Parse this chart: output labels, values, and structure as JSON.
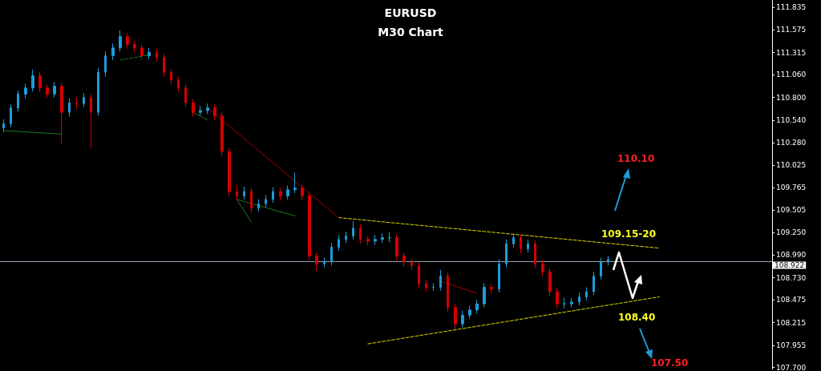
{
  "chart_data": {
    "type": "candlestick",
    "title": "EURUSD",
    "subtitle": "M30 Chart",
    "categories": [
      null,
      null,
      null,
      null,
      null,
      null,
      null,
      null,
      null,
      null,
      null,
      null,
      null,
      null,
      null,
      null,
      null,
      null,
      null,
      null,
      null,
      null,
      null,
      null,
      null,
      null,
      null,
      null,
      null,
      null,
      null,
      null,
      null,
      null,
      null,
      null,
      null,
      null,
      null,
      null,
      null,
      null,
      null,
      null,
      null,
      null,
      null,
      null,
      null,
      null,
      null,
      null,
      null,
      null,
      null,
      null,
      null,
      null,
      null,
      null,
      null,
      null,
      null,
      null,
      null,
      null,
      null,
      null,
      null,
      null,
      null,
      null,
      null,
      null,
      null,
      null,
      null,
      null,
      null,
      null,
      null,
      null,
      null,
      null,
      null,
      null,
      null,
      null,
      null,
      null,
      null,
      null,
      null,
      null,
      null,
      null,
      null,
      null,
      null,
      null,
      null,
      null,
      null,
      null,
      null,
      null
    ],
    "ylim": [
      107.68,
      111.92
    ],
    "yticks": [
      {
        "value": 107.7,
        "label": "107.700"
      },
      {
        "value": 107.955,
        "label": "107.955"
      },
      {
        "value": 108.215,
        "label": "108.215"
      },
      {
        "value": 108.475,
        "label": "108.475"
      },
      {
        "value": 108.73,
        "label": "108.730"
      },
      {
        "value": 108.99,
        "label": "108.990"
      },
      {
        "value": 109.25,
        "label": "109.250"
      },
      {
        "value": 109.505,
        "label": "109.505"
      },
      {
        "value": 109.765,
        "label": "109.765"
      },
      {
        "value": 110.025,
        "label": "110.025"
      },
      {
        "value": 110.28,
        "label": "110.280"
      },
      {
        "value": 110.54,
        "label": "110.540"
      },
      {
        "value": 110.8,
        "label": "110.800"
      },
      {
        "value": 111.06,
        "label": "111.060"
      },
      {
        "value": 111.315,
        "label": "111.315"
      },
      {
        "value": 111.575,
        "label": "111.575"
      },
      {
        "value": 111.835,
        "label": "111.835"
      }
    ],
    "grid": false,
    "tick_labels": "y",
    "marker": "none",
    "ref_lines": [
      {
        "axis": "y",
        "value": 108.922,
        "label": "108.922",
        "color": "#8ea0b8"
      }
    ],
    "annotations": [
      "110.10",
      "109.15-20",
      "108.40",
      "107.50"
    ],
    "series": [
      {
        "ohlc": [
          [
            110.45,
            110.55,
            110.4,
            110.5
          ],
          [
            110.5,
            110.72,
            110.46,
            110.68
          ],
          [
            110.68,
            110.88,
            110.64,
            110.84
          ],
          [
            110.84,
            110.96,
            110.79,
            110.91
          ],
          [
            110.91,
            111.12,
            110.87,
            111.05
          ],
          [
            111.05,
            111.09,
            110.86,
            110.91
          ],
          [
            110.91,
            110.95,
            110.8,
            110.84
          ],
          [
            110.84,
            110.98,
            110.8,
            110.93
          ],
          [
            110.93,
            110.97,
            110.27,
            110.63
          ],
          [
            110.63,
            110.79,
            110.58,
            110.74
          ],
          [
            110.74,
            110.8,
            110.67,
            110.73
          ],
          [
            110.73,
            110.85,
            110.69,
            110.8
          ],
          [
            110.8,
            110.84,
            110.22,
            110.63
          ],
          [
            110.63,
            111.14,
            110.59,
            111.09
          ],
          [
            111.09,
            111.33,
            111.04,
            111.28
          ],
          [
            111.28,
            111.42,
            111.23,
            111.37
          ],
          [
            111.37,
            111.57,
            111.33,
            111.5
          ],
          [
            111.5,
            111.54,
            111.36,
            111.41
          ],
          [
            111.41,
            111.45,
            111.32,
            111.37
          ],
          [
            111.37,
            111.41,
            111.23,
            111.28
          ],
          [
            111.28,
            111.37,
            111.24,
            111.32
          ],
          [
            111.32,
            111.36,
            111.21,
            111.26
          ],
          [
            111.26,
            111.3,
            111.04,
            111.09
          ],
          [
            111.09,
            111.13,
            110.95,
            111.0
          ],
          [
            111.0,
            111.04,
            110.86,
            110.91
          ],
          [
            110.91,
            110.95,
            110.69,
            110.74
          ],
          [
            110.74,
            110.78,
            110.58,
            110.63
          ],
          [
            110.63,
            110.7,
            110.59,
            110.65
          ],
          [
            110.65,
            110.73,
            110.61,
            110.68
          ],
          [
            110.68,
            110.72,
            110.54,
            110.59
          ],
          [
            110.59,
            110.63,
            110.13,
            110.18
          ],
          [
            110.18,
            110.22,
            109.67,
            109.72
          ],
          [
            109.72,
            109.8,
            109.62,
            109.67
          ],
          [
            109.67,
            109.78,
            109.63,
            109.72
          ],
          [
            109.72,
            109.76,
            109.48,
            109.53
          ],
          [
            109.53,
            109.63,
            109.49,
            109.58
          ],
          [
            109.58,
            109.68,
            109.54,
            109.63
          ],
          [
            109.63,
            109.77,
            109.59,
            109.72
          ],
          [
            109.72,
            109.76,
            109.62,
            109.67
          ],
          [
            109.67,
            109.79,
            109.63,
            109.74
          ],
          [
            109.74,
            109.94,
            109.7,
            109.76
          ],
          [
            109.76,
            109.8,
            109.62,
            109.67
          ],
          [
            109.67,
            109.71,
            108.93,
            108.98
          ],
          [
            108.98,
            109.02,
            108.81,
            108.89
          ],
          [
            108.89,
            108.96,
            108.85,
            108.91
          ],
          [
            108.91,
            109.13,
            108.87,
            109.08
          ],
          [
            109.08,
            109.22,
            109.04,
            109.17
          ],
          [
            109.17,
            109.26,
            109.13,
            109.21
          ],
          [
            109.21,
            109.38,
            109.17,
            109.3
          ],
          [
            109.3,
            109.34,
            109.12,
            109.17
          ],
          [
            109.17,
            109.21,
            109.1,
            109.15
          ],
          [
            109.15,
            109.22,
            109.11,
            109.17
          ],
          [
            109.17,
            109.24,
            109.13,
            109.19
          ],
          [
            109.19,
            109.25,
            109.14,
            109.19
          ],
          [
            109.19,
            109.23,
            108.93,
            108.98
          ],
          [
            108.98,
            109.02,
            108.86,
            108.91
          ],
          [
            108.91,
            108.95,
            108.82,
            108.87
          ],
          [
            108.87,
            108.91,
            108.61,
            108.66
          ],
          [
            108.66,
            108.7,
            108.57,
            108.62
          ],
          [
            108.62,
            108.67,
            108.58,
            108.62
          ],
          [
            108.62,
            108.82,
            108.58,
            108.75
          ],
          [
            108.75,
            108.79,
            108.34,
            108.39
          ],
          [
            108.39,
            108.43,
            108.14,
            108.2
          ],
          [
            108.2,
            108.35,
            108.16,
            108.3
          ],
          [
            108.3,
            108.41,
            108.26,
            108.36
          ],
          [
            108.36,
            108.48,
            108.32,
            108.43
          ],
          [
            108.43,
            108.67,
            108.39,
            108.62
          ],
          [
            108.62,
            108.66,
            108.55,
            108.6
          ],
          [
            108.6,
            108.94,
            108.56,
            108.89
          ],
          [
            108.89,
            109.17,
            108.85,
            109.12
          ],
          [
            109.12,
            109.24,
            109.08,
            109.19
          ],
          [
            109.19,
            109.23,
            109.01,
            109.06
          ],
          [
            109.06,
            109.17,
            109.02,
            109.12
          ],
          [
            109.12,
            109.16,
            108.84,
            108.89
          ],
          [
            108.89,
            108.93,
            108.75,
            108.8
          ],
          [
            108.8,
            108.84,
            108.52,
            108.57
          ],
          [
            108.57,
            108.61,
            108.38,
            108.43
          ],
          [
            108.43,
            108.5,
            108.38,
            108.43
          ],
          [
            108.43,
            108.5,
            108.39,
            108.45
          ],
          [
            108.45,
            108.56,
            108.41,
            108.51
          ],
          [
            108.51,
            108.62,
            108.47,
            108.57
          ],
          [
            108.57,
            108.8,
            108.53,
            108.75
          ],
          [
            108.75,
            108.96,
            108.71,
            108.91
          ],
          [
            108.91,
            108.98,
            108.87,
            108.94
          ],
          null,
          null,
          null,
          null,
          null,
          null,
          null,
          null,
          null,
          null,
          null,
          null,
          null,
          null,
          null,
          null,
          null,
          null,
          null,
          null,
          null,
          null
        ],
        "colors": [
          "#1e9bd7",
          "#1e9bd7",
          "#1e9bd7",
          "#1e9bd7",
          "#1e9bd7",
          "#d40000",
          "#d40000",
          "#1e9bd7",
          "#d40000",
          "#1e9bd7",
          "#d40000",
          "#1e9bd7",
          "#d40000",
          "#1e9bd7",
          "#1e9bd7",
          "#1e9bd7",
          "#1e9bd7",
          "#d40000",
          "#d40000",
          "#d40000",
          "#1e9bd7",
          "#d40000",
          "#d40000",
          "#d40000",
          "#d40000",
          "#d40000",
          "#d40000",
          "#1e9bd7",
          "#1e9bd7",
          "#d40000",
          "#d40000",
          "#d40000",
          "#d40000",
          "#1e9bd7",
          "#d40000",
          "#1e9bd7",
          "#1e9bd7",
          "#1e9bd7",
          "#d40000",
          "#1e9bd7",
          "#1e9bd7",
          "#d40000",
          "#d40000",
          "#d40000",
          "#1e9bd7",
          "#1e9bd7",
          "#1e9bd7",
          "#1e9bd7",
          "#1e9bd7",
          "#d40000",
          "#d40000",
          "#1e9bd7",
          "#1e9bd7",
          "#1e9bd7",
          "#d40000",
          "#d40000",
          "#d40000",
          "#d40000",
          "#d40000",
          "#1e9bd7",
          "#1e9bd7",
          "#d40000",
          "#d40000",
          "#1e9bd7",
          "#1e9bd7",
          "#1e9bd7",
          "#1e9bd7",
          "#d40000",
          "#1e9bd7",
          "#1e9bd7",
          "#1e9bd7",
          "#d40000",
          "#1e9bd7",
          "#d40000",
          "#d40000",
          "#d40000",
          "#d40000",
          "#1e9bd7",
          "#1e9bd7",
          "#1e9bd7",
          "#1e9bd7",
          "#1e9bd7",
          "#1e9bd7",
          "#1e9bd7",
          null,
          null,
          null,
          null,
          null,
          null,
          null,
          null,
          null,
          null,
          null,
          null,
          null,
          null,
          null,
          null,
          null,
          null,
          null,
          null,
          null,
          null
        ]
      },
      {
        "type": "line",
        "color": "#d8d800",
        "line_style": "dashed",
        "values": [
          null,
          null,
          null,
          null,
          null,
          null,
          null,
          null,
          null,
          null,
          null,
          null,
          null,
          null,
          null,
          null,
          null,
          null,
          null,
          null,
          null,
          null,
          null,
          null,
          null,
          null,
          null,
          null,
          null,
          null,
          null,
          null,
          null,
          null,
          null,
          null,
          null,
          null,
          null,
          null,
          null,
          null,
          null,
          null,
          null,
          null,
          109.42,
          null,
          null,
          null,
          null,
          null,
          null,
          null,
          null,
          null,
          null,
          null,
          null,
          null,
          null,
          null,
          null,
          null,
          null,
          null,
          null,
          null,
          null,
          null,
          null,
          null,
          null,
          null,
          null,
          null,
          null,
          null,
          null,
          null,
          null,
          null,
          null,
          null,
          null,
          null,
          null,
          null,
          null,
          null,
          109.07,
          null,
          null,
          null,
          null,
          null,
          null,
          null,
          null,
          null,
          null,
          null,
          null,
          null,
          null,
          null
        ]
      },
      {
        "type": "line",
        "color": "#d8d800",
        "line_style": "dashed",
        "values": [
          null,
          null,
          null,
          null,
          null,
          null,
          null,
          null,
          null,
          null,
          null,
          null,
          null,
          null,
          null,
          null,
          null,
          null,
          null,
          null,
          null,
          null,
          null,
          null,
          null,
          null,
          null,
          null,
          null,
          null,
          null,
          null,
          null,
          null,
          null,
          null,
          null,
          null,
          null,
          null,
          null,
          null,
          null,
          null,
          null,
          null,
          null,
          null,
          null,
          null,
          107.97,
          null,
          null,
          null,
          null,
          null,
          null,
          null,
          null,
          null,
          null,
          null,
          null,
          null,
          null,
          null,
          null,
          null,
          null,
          null,
          null,
          null,
          null,
          null,
          null,
          null,
          null,
          null,
          null,
          null,
          null,
          null,
          null,
          null,
          null,
          null,
          null,
          null,
          null,
          null,
          108.51,
          null,
          null,
          null,
          null,
          null,
          null,
          null,
          null,
          null,
          null,
          null,
          null,
          null,
          null,
          null
        ]
      },
      {
        "type": "line",
        "color": "#c00000",
        "line_style": "dotted",
        "values": [
          null,
          null,
          null,
          null,
          null,
          null,
          null,
          null,
          null,
          null,
          null,
          null,
          null,
          null,
          null,
          null,
          null,
          null,
          null,
          null,
          null,
          null,
          null,
          null,
          null,
          null,
          null,
          null,
          110.68,
          null,
          null,
          null,
          null,
          null,
          null,
          null,
          null,
          null,
          null,
          null,
          null,
          null,
          null,
          null,
          null,
          null,
          109.42,
          null,
          null,
          null,
          null,
          null,
          null,
          null,
          null,
          null,
          null,
          null,
          null,
          null,
          null,
          null,
          null,
          null,
          null,
          null,
          null,
          null,
          null,
          null,
          null,
          null,
          null,
          null,
          null,
          null,
          null,
          null,
          null,
          null,
          null,
          null,
          null,
          null,
          null,
          null,
          null,
          null,
          null,
          null,
          null,
          null,
          null,
          null,
          null,
          null,
          null,
          null,
          null,
          null,
          null,
          null,
          null,
          null,
          null,
          null
        ]
      },
      {
        "type": "line",
        "color": "#c00000",
        "line_style": "dotted",
        "values": [
          null,
          null,
          null,
          null,
          null,
          null,
          null,
          null,
          null,
          null,
          null,
          null,
          null,
          null,
          null,
          null,
          null,
          null,
          null,
          null,
          null,
          null,
          null,
          null,
          null,
          null,
          null,
          null,
          null,
          null,
          null,
          null,
          null,
          null,
          null,
          null,
          null,
          null,
          null,
          null,
          null,
          null,
          null,
          null,
          null,
          null,
          null,
          null,
          null,
          null,
          null,
          null,
          null,
          null,
          null,
          null,
          null,
          null,
          null,
          null,
          108.69,
          null,
          null,
          null,
          null,
          108.55,
          null,
          null,
          null,
          null,
          null,
          null,
          null,
          null,
          null,
          null,
          null,
          null,
          null,
          null,
          null,
          null,
          null,
          null,
          null,
          null,
          null,
          null,
          null,
          null,
          null,
          null,
          null,
          null,
          null,
          null,
          null,
          null,
          null,
          null,
          null,
          null,
          null,
          null,
          null,
          null
        ]
      },
      {
        "type": "line",
        "color": "#1a7a1a",
        "line_style": "solid",
        "values": [
          110.42,
          null,
          null,
          null,
          null,
          null,
          null,
          null,
          110.38,
          null,
          null,
          null,
          null,
          null,
          null,
          null,
          null,
          null,
          null,
          null,
          null,
          null,
          null,
          null,
          null,
          null,
          null,
          null,
          null,
          null,
          null,
          null,
          null,
          null,
          null,
          null,
          null,
          null,
          null,
          null,
          null,
          null,
          null,
          null,
          null,
          null,
          null,
          null,
          null,
          null,
          null,
          null,
          null,
          null,
          null,
          null,
          null,
          null,
          null,
          null,
          null,
          null,
          null,
          null,
          null,
          null,
          null,
          null,
          null,
          null,
          null,
          null,
          null,
          null,
          null,
          null,
          null,
          null,
          null,
          null,
          null,
          null,
          null,
          null,
          null,
          null,
          null,
          null,
          null,
          null,
          null,
          null,
          null,
          null,
          null,
          null,
          null,
          null,
          null,
          null,
          null,
          null,
          null,
          null,
          null,
          null
        ]
      },
      {
        "type": "line",
        "color": "#1a7a1a",
        "line_style": "dashed",
        "values": [
          null,
          null,
          null,
          null,
          null,
          null,
          null,
          null,
          null,
          null,
          null,
          null,
          null,
          null,
          null,
          null,
          111.23,
          null,
          null,
          null,
          111.29,
          null,
          null,
          null,
          null,
          null,
          null,
          null,
          null,
          null,
          null,
          null,
          null,
          null,
          null,
          null,
          null,
          null,
          null,
          null,
          null,
          null,
          null,
          null,
          null,
          null,
          null,
          null,
          null,
          null,
          null,
          null,
          null,
          null,
          null,
          null,
          null,
          null,
          null,
          null,
          null,
          null,
          null,
          null,
          null,
          null,
          null,
          null,
          null,
          null,
          null,
          null,
          null,
          null,
          null,
          null,
          null,
          null,
          null,
          null,
          null,
          null,
          null,
          null,
          null,
          null,
          null,
          null,
          null,
          null,
          null,
          null,
          null,
          null,
          null,
          null,
          null,
          null,
          null,
          null,
          null,
          null,
          null,
          null,
          null,
          null
        ]
      },
      {
        "type": "line",
        "color": "#1a7a1a",
        "line_style": "solid",
        "values": [
          null,
          null,
          null,
          null,
          null,
          null,
          null,
          null,
          null,
          null,
          null,
          null,
          null,
          null,
          null,
          null,
          null,
          null,
          null,
          null,
          null,
          null,
          null,
          null,
          null,
          null,
          110.63,
          null,
          110.54,
          null,
          null,
          null,
          null,
          null,
          null,
          null,
          null,
          null,
          null,
          null,
          null,
          null,
          null,
          null,
          null,
          null,
          null,
          null,
          null,
          null,
          null,
          null,
          null,
          null,
          null,
          null,
          null,
          null,
          null,
          null,
          null,
          null,
          null,
          null,
          null,
          null,
          null,
          null,
          null,
          null,
          null,
          null,
          null,
          null,
          null,
          null,
          null,
          null,
          null,
          null,
          null,
          null,
          null,
          null,
          null,
          null,
          null,
          null,
          null,
          null,
          null,
          null,
          null,
          null,
          null,
          null,
          null,
          null,
          null,
          null,
          null,
          null,
          null,
          null,
          null,
          null
        ]
      },
      {
        "type": "line",
        "color": "#1a7a1a",
        "line_style": "solid",
        "values": [
          null,
          null,
          null,
          null,
          null,
          null,
          null,
          null,
          null,
          null,
          null,
          null,
          null,
          null,
          null,
          null,
          null,
          null,
          null,
          null,
          null,
          null,
          null,
          null,
          null,
          null,
          null,
          null,
          null,
          null,
          null,
          null,
          109.63,
          null,
          null,
          null,
          null,
          null,
          null,
          null,
          109.44,
          null,
          null,
          null,
          null,
          null,
          null,
          null,
          null,
          null,
          null,
          null,
          null,
          null,
          null,
          null,
          null,
          null,
          null,
          null,
          null,
          null,
          null,
          null,
          null,
          null,
          null,
          null,
          null,
          null,
          null,
          null,
          null,
          null,
          null,
          null,
          null,
          null,
          null,
          null,
          null,
          null,
          null,
          null,
          null,
          null,
          null,
          null,
          null,
          null,
          null,
          null,
          null,
          null,
          null,
          null,
          null,
          null,
          null,
          null,
          null,
          null,
          null,
          null,
          null,
          null
        ]
      },
      {
        "type": "line",
        "color": "#1a7a1a",
        "line_style": "solid",
        "values": [
          null,
          null,
          null,
          null,
          null,
          null,
          null,
          null,
          null,
          null,
          null,
          null,
          null,
          null,
          null,
          null,
          null,
          null,
          null,
          null,
          null,
          null,
          null,
          null,
          null,
          null,
          null,
          null,
          null,
          null,
          null,
          null,
          109.63,
          null,
          109.37,
          null,
          null,
          null,
          null,
          null,
          null,
          null,
          null,
          null,
          null,
          null,
          null,
          null,
          null,
          null,
          null,
          null,
          null,
          null,
          null,
          null,
          null,
          null,
          null,
          null,
          null,
          null,
          null,
          null,
          null,
          null,
          null,
          null,
          null,
          null,
          null,
          null,
          null,
          null,
          null,
          null,
          null,
          null,
          null,
          null,
          null,
          null,
          null,
          null,
          null,
          null,
          null,
          null,
          null,
          null,
          null,
          null,
          null,
          null,
          null,
          null,
          null,
          null,
          null,
          null,
          null,
          null,
          null,
          null,
          null,
          null
        ]
      }
    ]
  }
}
